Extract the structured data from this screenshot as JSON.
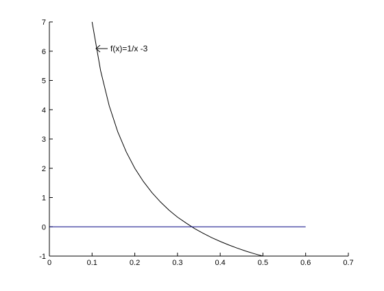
{
  "chart_data": {
    "type": "line",
    "annotation": "f(x)=1/x -3",
    "xlim": [
      0,
      0.7
    ],
    "xticks": [
      0,
      0.1,
      0.2,
      0.3,
      0.4,
      0.5,
      0.6,
      0.7
    ],
    "ylim": [
      -1,
      7
    ],
    "yticks": [
      -1,
      0,
      1,
      2,
      3,
      4,
      5,
      6,
      7
    ],
    "grid": false,
    "series": [
      {
        "color": "#000000",
        "x": [
          0.1,
          0.12,
          0.14,
          0.16,
          0.18,
          0.2,
          0.22,
          0.24,
          0.26,
          0.28,
          0.3,
          0.32,
          0.34,
          0.36,
          0.38,
          0.4,
          0.42,
          0.44,
          0.46,
          0.48,
          0.5
        ],
        "values": [
          7,
          5.33,
          4.14,
          3.25,
          2.56,
          2,
          1.55,
          1.17,
          0.85,
          0.57,
          0.33,
          0.13,
          -0.06,
          -0.22,
          -0.37,
          -0.5,
          -0.62,
          -0.73,
          -0.83,
          -0.92,
          -1
        ]
      },
      {
        "color": "#000080",
        "x": [
          0,
          0.6
        ],
        "values": [
          0,
          0
        ]
      }
    ]
  }
}
